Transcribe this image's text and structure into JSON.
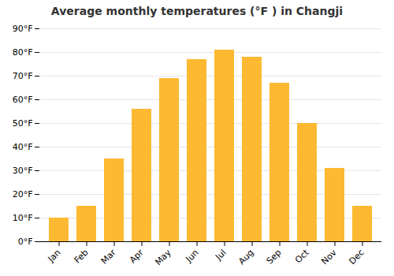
{
  "chart_data": {
    "type": "bar",
    "title": "Average monthly temperatures (°F ) in Changji",
    "categories": [
      "Jan",
      "Feb",
      "Mar",
      "Apr",
      "May",
      "Jun",
      "Jul",
      "Aug",
      "Sep",
      "Oct",
      "Nov",
      "Dec"
    ],
    "values": [
      10,
      15,
      35,
      56,
      69,
      77,
      81,
      78,
      67,
      50,
      31,
      15
    ],
    "color": "#FDB931",
    "ylim": [
      0,
      90
    ],
    "yticks": [
      {
        "value": 0,
        "label": "0°F"
      },
      {
        "value": 10,
        "label": "10°F"
      },
      {
        "value": 20,
        "label": "20°F"
      },
      {
        "value": 30,
        "label": "30°F"
      },
      {
        "value": 40,
        "label": "40°F"
      },
      {
        "value": 50,
        "label": "50°F"
      },
      {
        "value": 60,
        "label": "60°F"
      },
      {
        "value": 70,
        "label": "70°F"
      },
      {
        "value": 80,
        "label": "80°F"
      },
      {
        "value": 90,
        "label": "90°F"
      }
    ],
    "grid": true
  }
}
